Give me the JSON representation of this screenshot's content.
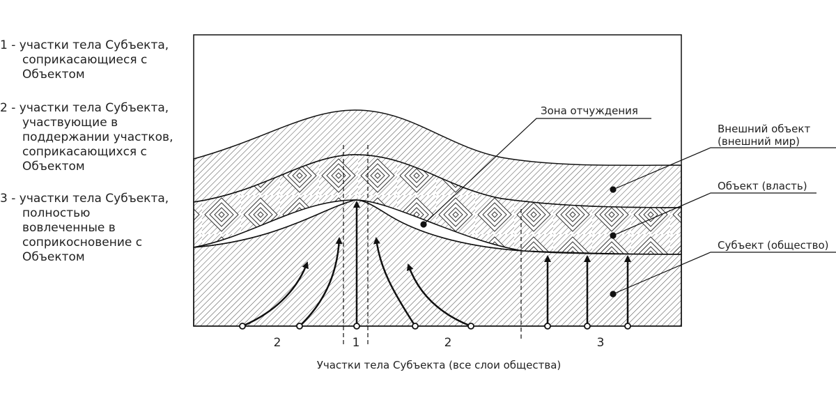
{
  "legend": {
    "items": [
      {
        "lines": [
          "1 - участки тела Субъекта,",
          "соприкасающиеся с",
          "Объектом"
        ]
      },
      {
        "lines": [
          "2 - участки тела Субъекта,",
          "участвующие в",
          "поддержании участков,",
          "соприкасающихся с",
          "Объектом"
        ]
      },
      {
        "lines": [
          "3 - участки тела Субъекта,",
          "полностью",
          "вовлеченные в",
          "соприкосновение с",
          "Объектом"
        ]
      }
    ]
  },
  "labels": {
    "zone": "Зона отчуждения",
    "outer_line1": "Внешний объект",
    "outer_line2": "(внешний мир)",
    "object": "Объект (власть)",
    "subject": "Субъект (общество)"
  },
  "sections": [
    "2",
    "1",
    "2",
    "3"
  ],
  "caption": "Участки тела Субъекта (все слои общества)"
}
